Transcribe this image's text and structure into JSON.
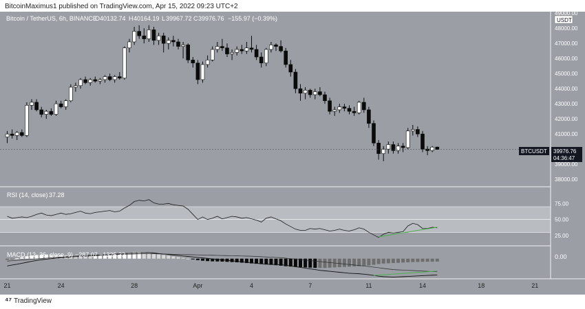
{
  "header": {
    "published_line": "BitcoinMaximus1 published on TradingView.com, Apr 15, 2022 09:23 UTC+2"
  },
  "footer": {
    "brand": "TradingView"
  },
  "colors": {
    "background": "#9b9ea4",
    "up": "#ffffff",
    "down": "#0b0b0b",
    "rsi_band": "#b9bcc0",
    "divergence": "#4caf50",
    "label_bg": "#131722"
  },
  "price_panel": {
    "instrument": "Bitcoin / TetherUS, 6h, BINANCE",
    "ohlc": {
      "o_label": "O",
      "o": "40132.74",
      "h_label": "H",
      "h": "40164.19",
      "l_label": "L",
      "l": "39967.72",
      "c_label": "C",
      "c": "39976.76",
      "change": "−155.97 (−0.39%)"
    },
    "currency": "USDT",
    "symbol_tag": "BTCUSDT",
    "last_price": "39976.76",
    "countdown": "04:36:47"
  },
  "rsi_panel": {
    "label": "RSI (14, close)",
    "value": "37.28"
  },
  "macd_panel": {
    "label": "MACD (12, 26, close, 9)",
    "values": "−287.07  −1325.32",
    "axis_label": "0.00"
  },
  "x_axis_labels": [
    "21",
    "24",
    "28",
    "Apr",
    "4",
    "7",
    "11",
    "14",
    "18",
    "21"
  ],
  "chart_data": [
    {
      "type": "candlestick",
      "title": "Bitcoin / TetherUS, 6h, BINANCE",
      "y_ticks": [
        38000,
        39000,
        40000,
        41000,
        42000,
        43000,
        44000,
        45000,
        46000,
        47000,
        48000,
        49000
      ],
      "ylim": [
        37550,
        49100
      ],
      "grid": false,
      "candles": [
        [
          40800,
          41200,
          40400,
          41000
        ],
        [
          41000,
          41300,
          40700,
          40900
        ],
        [
          40900,
          41200,
          40600,
          41100
        ],
        [
          41100,
          41300,
          40800,
          40900
        ],
        [
          40900,
          43100,
          40800,
          42900
        ],
        [
          42900,
          43300,
          42600,
          43100
        ],
        [
          43100,
          43300,
          42500,
          42600
        ],
        [
          42600,
          42800,
          42100,
          42300
        ],
        [
          42300,
          42600,
          42000,
          42500
        ],
        [
          42500,
          42700,
          42200,
          42300
        ],
        [
          42300,
          43200,
          42200,
          43000
        ],
        [
          43000,
          43200,
          42700,
          42800
        ],
        [
          42800,
          43300,
          42600,
          43200
        ],
        [
          43200,
          44300,
          43100,
          44100
        ],
        [
          44100,
          44400,
          43800,
          44200
        ],
        [
          44200,
          44700,
          44000,
          44600
        ],
        [
          44600,
          44800,
          44300,
          44400
        ],
        [
          44400,
          44700,
          44200,
          44600
        ],
        [
          44600,
          44800,
          44400,
          44500
        ],
        [
          44500,
          44700,
          44300,
          44600
        ],
        [
          44600,
          44900,
          44400,
          44800
        ],
        [
          44800,
          45000,
          44500,
          44600
        ],
        [
          44600,
          44900,
          44400,
          44800
        ],
        [
          44800,
          45100,
          44600,
          44700
        ],
        [
          44700,
          46800,
          44600,
          46700
        ],
        [
          46700,
          47300,
          46400,
          47100
        ],
        [
          47100,
          48100,
          46900,
          47800
        ],
        [
          47800,
          48200,
          47300,
          47500
        ],
        [
          47500,
          48000,
          47000,
          47300
        ],
        [
          47300,
          48200,
          47100,
          47900
        ],
        [
          47900,
          48100,
          46900,
          47200
        ],
        [
          47200,
          47700,
          46900,
          47500
        ],
        [
          47500,
          47700,
          46400,
          47000
        ],
        [
          47000,
          47400,
          46600,
          47200
        ],
        [
          47200,
          47500,
          46800,
          47100
        ],
        [
          47100,
          47300,
          46600,
          46800
        ],
        [
          46800,
          47100,
          46000,
          46900
        ],
        [
          46900,
          47000,
          45700,
          45900
        ],
        [
          45900,
          46100,
          45400,
          45700
        ],
        [
          45700,
          45900,
          44300,
          44600
        ],
        [
          44600,
          45800,
          44400,
          45600
        ],
        [
          45600,
          46200,
          45400,
          45900
        ],
        [
          45900,
          46800,
          45800,
          46600
        ],
        [
          46600,
          47100,
          46400,
          46800
        ],
        [
          46800,
          47300,
          46500,
          46700
        ],
        [
          46700,
          47000,
          46100,
          46300
        ],
        [
          46300,
          46600,
          45900,
          46400
        ],
        [
          46400,
          46800,
          46200,
          46600
        ],
        [
          46600,
          46900,
          46300,
          46500
        ],
        [
          46500,
          47100,
          46300,
          46700
        ],
        [
          46700,
          47500,
          46400,
          46600
        ],
        [
          46600,
          46900,
          45900,
          46100
        ],
        [
          46100,
          46400,
          45400,
          45700
        ],
        [
          45700,
          46700,
          45500,
          46600
        ],
        [
          46600,
          47100,
          46400,
          46900
        ],
        [
          46900,
          47000,
          46500,
          46800
        ],
        [
          46800,
          47200,
          46400,
          46500
        ],
        [
          46500,
          46700,
          45400,
          45600
        ],
        [
          45600,
          45900,
          44800,
          45100
        ],
        [
          45100,
          45300,
          43700,
          44000
        ],
        [
          44000,
          44300,
          43200,
          43700
        ],
        [
          43700,
          44100,
          43300,
          43900
        ],
        [
          43900,
          44000,
          43400,
          43600
        ],
        [
          43600,
          44000,
          43300,
          43800
        ],
        [
          43800,
          44100,
          43500,
          43600
        ],
        [
          43600,
          43800,
          43000,
          43200
        ],
        [
          43200,
          43400,
          42300,
          42500
        ],
        [
          42500,
          42800,
          42200,
          42600
        ],
        [
          42600,
          43000,
          42400,
          42800
        ],
        [
          42800,
          43000,
          42500,
          42700
        ],
        [
          42700,
          42900,
          42300,
          42500
        ],
        [
          42500,
          42800,
          42200,
          42400
        ],
        [
          42400,
          43200,
          42300,
          43100
        ],
        [
          43100,
          43400,
          42400,
          42600
        ],
        [
          42600,
          42800,
          41400,
          41700
        ],
        [
          41700,
          41900,
          40200,
          40400
        ],
        [
          40400,
          40600,
          39300,
          39700
        ],
        [
          39700,
          40200,
          39200,
          40000
        ],
        [
          40000,
          40500,
          39700,
          40300
        ],
        [
          40300,
          40500,
          39700,
          39900
        ],
        [
          39900,
          40400,
          39700,
          40200
        ],
        [
          40200,
          40400,
          39800,
          40100
        ],
        [
          40100,
          41400,
          40000,
          41200
        ],
        [
          41200,
          41600,
          40900,
          41300
        ],
        [
          41300,
          41500,
          40800,
          41000
        ],
        [
          41000,
          41200,
          39800,
          40000
        ],
        [
          40000,
          40200,
          39600,
          39900
        ],
        [
          39900,
          40200,
          39800,
          40132
        ],
        [
          40132,
          40164,
          39967,
          39977
        ]
      ]
    },
    {
      "type": "line",
      "title": "RSI (14, close)",
      "y_ticks": [
        25,
        50,
        75
      ],
      "ylim": [
        10,
        100
      ],
      "band": [
        30,
        70
      ],
      "midline": 50,
      "series": [
        {
          "values": [
            55,
            52,
            53,
            54,
            53,
            55,
            58,
            60,
            57,
            56,
            58,
            60,
            58,
            59,
            61,
            63,
            60,
            59,
            61,
            62,
            63,
            64,
            62,
            63,
            68,
            72,
            78,
            80,
            79,
            81,
            76,
            74,
            74,
            75,
            73,
            72,
            71,
            66,
            58,
            50,
            54,
            50,
            52,
            55,
            51,
            53,
            55,
            54,
            52,
            53,
            51,
            49,
            46,
            52,
            54,
            51,
            48,
            43,
            39,
            35,
            33,
            33,
            36,
            35,
            36,
            34,
            32,
            33,
            35,
            33,
            32,
            34,
            37,
            35,
            30,
            26,
            22,
            27,
            30,
            29,
            30,
            31,
            40,
            44,
            42,
            36,
            36,
            38,
            37
          ]
        }
      ],
      "divergence_line": [
        [
          76,
          23
        ],
        [
          88,
          38
        ]
      ]
    },
    {
      "type": "bar",
      "title": "MACD (12, 26, close, 9)",
      "y_ticks": [
        0
      ],
      "ylim": [
        -1600,
        1000
      ],
      "series": [
        {
          "values": [
            -100,
            -50,
            30,
            120,
            200,
            260,
            300,
            330,
            340,
            330,
            320,
            300,
            280,
            260,
            250,
            240,
            230,
            220,
            220,
            230,
            240,
            260,
            300,
            360,
            420,
            480,
            520,
            540,
            520,
            480,
            420,
            360,
            300,
            240,
            180,
            120,
            60,
            0,
            -60,
            -120,
            -170,
            -200,
            -220,
            -230,
            -240,
            -260,
            -280,
            -300,
            -330,
            -360,
            -390,
            -420,
            -450,
            -480,
            -510,
            -540,
            -580,
            -620,
            -650,
            -680,
            -700,
            -720,
            -740,
            -760,
            -760,
            -760,
            -740,
            -720,
            -700,
            -680,
            -660,
            -640,
            -620,
            -600,
            -560,
            -500,
            -440,
            -400,
            -380,
            -360,
            -340,
            -320,
            -300,
            -280,
            -270,
            -260,
            -250,
            -250,
            -240
          ]
        }
      ],
      "macd_line": [
        -600,
        -520,
        -460,
        -380,
        -300,
        -220,
        -150,
        -90,
        -40,
        0,
        40,
        80,
        110,
        140,
        160,
        180,
        200,
        220,
        250,
        280,
        310,
        340,
        370,
        400,
        420,
        440,
        460,
        480,
        490,
        500,
        470,
        420,
        380,
        340,
        300,
        260,
        220,
        180,
        140,
        100,
        60,
        20,
        -20,
        -60,
        -100,
        -140,
        -180,
        -220,
        -260,
        -300,
        -340,
        -380,
        -420,
        -450,
        -470,
        -490,
        -500,
        -540,
        -600,
        -660,
        -720,
        -780,
        -840,
        -900,
        -960,
        -1000,
        -1040,
        -1080,
        -1120,
        -1160,
        -1200,
        -1220,
        -1240,
        -1280,
        -1320,
        -1380,
        -1440,
        -1480,
        -1500,
        -1520,
        -1500,
        -1480,
        -1460,
        -1440,
        -1420,
        -1400,
        -1380,
        -1360,
        -1340
      ],
      "signal_line": [
        -200,
        -170,
        -140,
        -110,
        -80,
        -50,
        -20,
        10,
        40,
        70,
        100,
        130,
        160,
        190,
        220,
        250,
        270,
        290,
        300,
        310,
        320,
        330,
        340,
        350,
        360,
        370,
        380,
        390,
        400,
        410,
        400,
        390,
        380,
        370,
        360,
        350,
        340,
        330,
        320,
        310,
        300,
        290,
        280,
        270,
        260,
        250,
        240,
        230,
        220,
        210,
        200,
        180,
        160,
        140,
        120,
        100,
        80,
        40,
        0,
        -40,
        -80,
        -120,
        -160,
        -200,
        -240,
        -280,
        -320,
        -360,
        -400,
        -440,
        -480,
        -520,
        -560,
        -600,
        -650,
        -700,
        -750,
        -800,
        -850,
        -900,
        -920,
        -940,
        -960,
        -980,
        -1000,
        -1020,
        -1040,
        -1060,
        -1080
      ],
      "divergence_line": [
        [
          75,
          -1380
        ],
        [
          88,
          -1020
        ]
      ]
    }
  ]
}
